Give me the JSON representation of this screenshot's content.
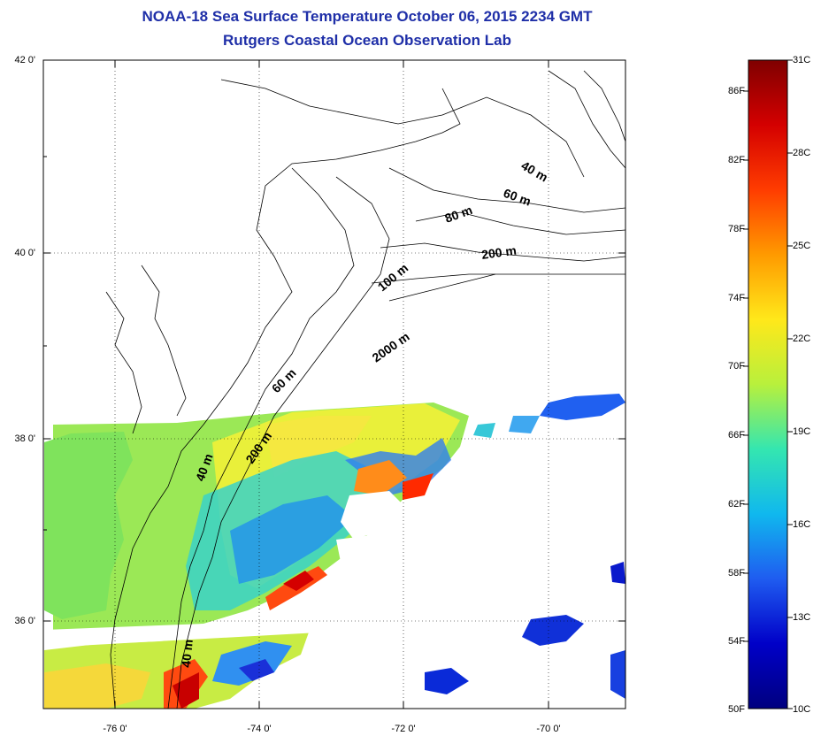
{
  "title": {
    "line1": "NOAA-18 Sea Surface Temperature October 06, 2015 2234 GMT",
    "line2": "Rutgers Coastal Ocean Observation Lab"
  },
  "axes": {
    "lat_ticks": [
      "42 0'",
      "40 0'",
      "38 0'",
      "36 0'"
    ],
    "lon_ticks": [
      "-76 0'",
      "-74 0'",
      "-72 0'",
      "-70 0'"
    ],
    "lat_range": [
      35,
      42
    ],
    "lon_range": [
      -77,
      -69
    ],
    "grid": "dotted"
  },
  "contour_labels": [
    "40 m",
    "60 m",
    "80 m",
    "200 m",
    "100 m",
    "2000 m",
    "60 m",
    "40 m",
    "200 m",
    "40 m"
  ],
  "colorbar": {
    "fahrenheit": [
      "86F",
      "82F",
      "78F",
      "74F",
      "70F",
      "66F",
      "62F",
      "58F",
      "54F",
      "50F"
    ],
    "celsius": [
      "31C",
      "28C",
      "25C",
      "22C",
      "19C",
      "16C",
      "13C",
      "10C"
    ],
    "range_c": [
      10,
      31
    ],
    "colors": [
      "#7f0000",
      "#d40000",
      "#ff3c00",
      "#ff9a00",
      "#ffe81a",
      "#b8f03c",
      "#34e6b0",
      "#10b8ee",
      "#1f5cf0",
      "#0000c8",
      "#00007f"
    ]
  }
}
